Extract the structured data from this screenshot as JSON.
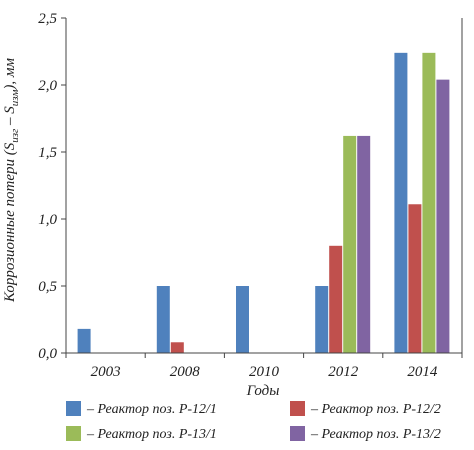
{
  "chart_data": {
    "type": "bar",
    "categories": [
      "2003",
      "2008",
      "2010",
      "2012",
      "2014"
    ],
    "series": [
      {
        "name": "– Реактор поз. Р-12/1",
        "color": "#4f81bd",
        "values": [
          0.18,
          0.5,
          0.5,
          0.5,
          2.24
        ]
      },
      {
        "name": "– Реактор поз. Р-12/2",
        "color": "#c0504d",
        "values": [
          0,
          0.08,
          0,
          0.8,
          1.11
        ]
      },
      {
        "name": "– Реактор поз. Р-13/1",
        "color": "#9bbb59",
        "values": [
          0,
          0,
          0,
          1.62,
          2.24
        ]
      },
      {
        "name": "– Реактор поз. Р-13/2",
        "color": "#8064a2",
        "values": [
          0,
          0,
          0,
          1.62,
          2.04
        ]
      }
    ],
    "xlabel": "Годы",
    "ylabel": "Коррозионные потери (S",
    "ylabel_sub1": "изг",
    "ylabel_mid": " – S",
    "ylabel_sub2": "изм",
    "ylabel_end": "), мм",
    "ylim": [
      0,
      2.5
    ],
    "yticks": [
      "0,0",
      "0,5",
      "1,0",
      "1,5",
      "2,0",
      "2,5"
    ],
    "legend_position": "bottom",
    "grid": false
  }
}
